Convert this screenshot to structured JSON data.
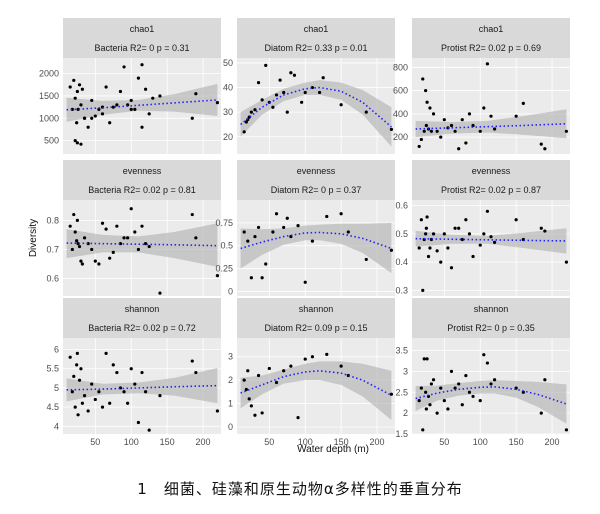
{
  "figure": {
    "caption": "1　细菌、硅藻和原生动物α多样性的垂直分布",
    "xlabel": "Water depth (m)",
    "ylabel": "Diversity"
  },
  "colors": {
    "panel_bg": "#ebebeb",
    "strip_bg": "#d9d9d9",
    "grid": "#ffffff",
    "point": "#000000",
    "fit_line": "#2020ff",
    "ribbon": "#b3b3b3"
  },
  "chart_data": [
    {
      "type": "scatter",
      "row": 0,
      "col": 0,
      "metric": "chao1",
      "title": "Bacteria R2= 0 p = 0.31",
      "xlim": [
        5,
        225
      ],
      "ylim": [
        200,
        2350
      ],
      "yticks": [
        500,
        1000,
        1500,
        2000
      ],
      "x": [
        15,
        18,
        20,
        22,
        24,
        25,
        26,
        28,
        30,
        32,
        35,
        40,
        45,
        50,
        55,
        60,
        65,
        70,
        75,
        80,
        85,
        90,
        95,
        100,
        105,
        110,
        115,
        120,
        125,
        130,
        140,
        185,
        190,
        220,
        22,
        30,
        25,
        100,
        115,
        60,
        45,
        35
      ],
      "y": [
        1700,
        1200,
        1850,
        1450,
        900,
        1600,
        1200,
        1750,
        1300,
        1650,
        1000,
        800,
        1400,
        1050,
        1200,
        1250,
        1700,
        900,
        1250,
        1300,
        1600,
        2150,
        1300,
        1400,
        1200,
        1900,
        2200,
        1650,
        1100,
        1450,
        1500,
        1000,
        1550,
        1350,
        500,
        420,
        450,
        1200,
        800,
        1100,
        1000,
        1000
      ],
      "fit": [
        [
          10,
          1190
        ],
        [
          60,
          1235
        ],
        [
          110,
          1290
        ],
        [
          160,
          1345
        ],
        [
          220,
          1410
        ]
      ],
      "ci": [
        [
          10,
          920,
          1460
        ],
        [
          60,
          1080,
          1390
        ],
        [
          110,
          1170,
          1410
        ],
        [
          160,
          1150,
          1540
        ],
        [
          220,
          1050,
          1770
        ]
      ]
    },
    {
      "type": "scatter",
      "row": 0,
      "col": 1,
      "metric": "chao1",
      "title": "Diatom R2= 0.33 p = 0.01",
      "xlim": [
        5,
        225
      ],
      "ylim": [
        13,
        52
      ],
      "yticks": [
        20,
        30,
        40,
        50
      ],
      "x": [
        15,
        18,
        20,
        22,
        25,
        30,
        35,
        40,
        45,
        50,
        55,
        60,
        65,
        70,
        75,
        80,
        85,
        95,
        100,
        110,
        120,
        125,
        150,
        185,
        220
      ],
      "y": [
        22,
        26,
        27,
        28,
        30,
        31,
        42,
        35,
        49,
        34,
        32,
        37,
        43,
        38,
        30,
        46,
        45,
        34,
        38,
        40,
        38,
        44,
        33,
        30,
        23
      ],
      "fit": [
        [
          10,
          25
        ],
        [
          40,
          32
        ],
        [
          70,
          37
        ],
        [
          100,
          39.5
        ],
        [
          120,
          40
        ],
        [
          150,
          38.5
        ],
        [
          180,
          34
        ],
        [
          220,
          24
        ]
      ],
      "ci": [
        [
          10,
          20,
          30
        ],
        [
          40,
          29,
          35
        ],
        [
          70,
          34.5,
          39.5
        ],
        [
          100,
          37,
          42
        ],
        [
          120,
          37,
          43
        ],
        [
          150,
          35,
          42
        ],
        [
          180,
          29,
          39
        ],
        [
          220,
          16,
          32
        ]
      ]
    },
    {
      "type": "scatter",
      "row": 0,
      "col": 2,
      "metric": "chao1",
      "title": "Protist R2= 0.02 p = 0.69",
      "xlim": [
        5,
        225
      ],
      "ylim": [
        55,
        880
      ],
      "yticks": [
        200,
        400,
        600,
        800
      ],
      "x": [
        15,
        18,
        20,
        22,
        24,
        25,
        26,
        28,
        30,
        32,
        35,
        40,
        45,
        50,
        55,
        60,
        65,
        70,
        75,
        80,
        85,
        90,
        100,
        105,
        110,
        115,
        120,
        150,
        160,
        185,
        190,
        220
      ],
      "y": [
        120,
        180,
        700,
        250,
        600,
        300,
        500,
        270,
        450,
        250,
        400,
        250,
        200,
        350,
        280,
        300,
        250,
        100,
        350,
        150,
        400,
        300,
        250,
        450,
        830,
        380,
        270,
        380,
        490,
        140,
        100,
        250
      ],
      "fit": [
        [
          10,
          270
        ],
        [
          60,
          280
        ],
        [
          110,
          290
        ],
        [
          160,
          300
        ],
        [
          220,
          315
        ]
      ],
      "ci": [
        [
          10,
          200,
          340
        ],
        [
          60,
          230,
          330
        ],
        [
          110,
          240,
          340
        ],
        [
          160,
          220,
          380
        ],
        [
          220,
          190,
          440
        ]
      ]
    },
    {
      "type": "scatter",
      "row": 1,
      "col": 0,
      "metric": "evenness",
      "title": "Bacteria R2= 0.02 p = 0.81",
      "xlim": [
        5,
        225
      ],
      "ylim": [
        0.54,
        0.87
      ],
      "yticks": [
        0.6,
        0.7,
        0.8
      ],
      "x": [
        15,
        18,
        20,
        22,
        24,
        25,
        26,
        28,
        30,
        32,
        35,
        40,
        45,
        50,
        55,
        60,
        65,
        70,
        75,
        80,
        85,
        90,
        95,
        100,
        105,
        110,
        115,
        120,
        125,
        140,
        185,
        190,
        220
      ],
      "y": [
        0.78,
        0.7,
        0.82,
        0.76,
        0.73,
        0.8,
        0.72,
        0.71,
        0.66,
        0.65,
        0.74,
        0.72,
        0.7,
        0.66,
        0.65,
        0.79,
        0.77,
        0.67,
        0.69,
        0.78,
        0.72,
        0.74,
        0.74,
        0.84,
        0.76,
        0.7,
        0.78,
        0.72,
        0.71,
        0.55,
        0.82,
        0.74,
        0.61
      ],
      "fit": [
        [
          10,
          0.722
        ],
        [
          60,
          0.72
        ],
        [
          110,
          0.718
        ],
        [
          160,
          0.716
        ],
        [
          220,
          0.713
        ]
      ],
      "ci": [
        [
          10,
          0.67,
          0.77
        ],
        [
          60,
          0.69,
          0.75
        ],
        [
          110,
          0.69,
          0.745
        ],
        [
          160,
          0.67,
          0.76
        ],
        [
          220,
          0.64,
          0.79
        ]
      ]
    },
    {
      "type": "scatter",
      "row": 1,
      "col": 1,
      "metric": "evenness",
      "title": "Diatom R2= 0 p = 0.37",
      "xlim": [
        5,
        225
      ],
      "ylim": [
        -0.05,
        1.0
      ],
      "yticks": [
        0.0,
        0.25,
        0.5,
        0.75
      ],
      "x": [
        15,
        20,
        25,
        30,
        35,
        40,
        45,
        55,
        60,
        70,
        75,
        80,
        90,
        100,
        110,
        130,
        150,
        160,
        185,
        220
      ],
      "y": [
        0.65,
        0.55,
        0.15,
        0.6,
        0.7,
        0.15,
        0.3,
        0.65,
        0.85,
        0.7,
        0.8,
        0.6,
        0.72,
        0.1,
        0.55,
        0.82,
        0.85,
        0.65,
        0.35,
        0.45
      ],
      "fit": [
        [
          10,
          0.47
        ],
        [
          40,
          0.54
        ],
        [
          70,
          0.6
        ],
        [
          100,
          0.64
        ],
        [
          120,
          0.645
        ],
        [
          150,
          0.63
        ],
        [
          180,
          0.58
        ],
        [
          220,
          0.47
        ]
      ],
      "ci": [
        [
          10,
          0.25,
          0.69
        ],
        [
          40,
          0.4,
          0.68
        ],
        [
          70,
          0.51,
          0.69
        ],
        [
          100,
          0.56,
          0.72
        ],
        [
          120,
          0.56,
          0.73
        ],
        [
          150,
          0.52,
          0.74
        ],
        [
          180,
          0.42,
          0.74
        ],
        [
          220,
          0.2,
          0.75
        ]
      ]
    },
    {
      "type": "scatter",
      "row": 1,
      "col": 2,
      "metric": "evenness",
      "title": "Protist R2= 0.02 p = 0.87",
      "xlim": [
        5,
        225
      ],
      "ylim": [
        0.28,
        0.62
      ],
      "yticks": [
        0.3,
        0.4,
        0.5,
        0.6
      ],
      "x": [
        15,
        18,
        20,
        22,
        24,
        25,
        26,
        28,
        30,
        32,
        35,
        40,
        45,
        50,
        55,
        60,
        65,
        70,
        75,
        80,
        85,
        90,
        100,
        105,
        110,
        115,
        120,
        150,
        160,
        185,
        190,
        220
      ],
      "y": [
        0.45,
        0.55,
        0.3,
        0.48,
        0.5,
        0.52,
        0.56,
        0.42,
        0.45,
        0.48,
        0.5,
        0.44,
        0.4,
        0.5,
        0.45,
        0.38,
        0.52,
        0.52,
        0.48,
        0.55,
        0.5,
        0.42,
        0.46,
        0.5,
        0.58,
        0.49,
        0.47,
        0.55,
        0.48,
        0.52,
        0.51,
        0.4
      ],
      "fit": [
        [
          10,
          0.483
        ],
        [
          60,
          0.481
        ],
        [
          110,
          0.479
        ],
        [
          160,
          0.477
        ],
        [
          220,
          0.475
        ]
      ],
      "ci": [
        [
          10,
          0.455,
          0.511
        ],
        [
          60,
          0.465,
          0.497
        ],
        [
          110,
          0.465,
          0.493
        ],
        [
          160,
          0.45,
          0.504
        ],
        [
          220,
          0.43,
          0.52
        ]
      ]
    },
    {
      "type": "scatter",
      "row": 2,
      "col": 0,
      "metric": "shannon",
      "title": "Bacteria R2= 0.02 p = 0.72",
      "xlim": [
        5,
        225
      ],
      "ylim": [
        3.8,
        6.3
      ],
      "yticks": [
        4.0,
        4.5,
        5.0,
        5.5,
        6.0
      ],
      "x": [
        15,
        18,
        20,
        22,
        24,
        25,
        26,
        28,
        30,
        32,
        35,
        40,
        45,
        50,
        55,
        60,
        65,
        70,
        75,
        80,
        85,
        90,
        95,
        100,
        105,
        110,
        115,
        120,
        125,
        140,
        185,
        190,
        220
      ],
      "y": [
        5.8,
        4.9,
        5.3,
        4.5,
        5.6,
        5.9,
        4.3,
        5.2,
        5.5,
        4.6,
        4.8,
        4.4,
        5.1,
        4.7,
        4.9,
        4.5,
        5.9,
        4.6,
        5.6,
        5.4,
        5.0,
        4.9,
        4.6,
        5.5,
        5.1,
        4.1,
        5.4,
        4.9,
        3.9,
        4.8,
        5.7,
        5.4,
        4.4
      ],
      "fit": [
        [
          10,
          4.95
        ],
        [
          60,
          4.97
        ],
        [
          110,
          5.0
        ],
        [
          160,
          5.03
        ],
        [
          220,
          5.06
        ]
      ],
      "ci": [
        [
          10,
          4.65,
          5.25
        ],
        [
          60,
          4.83,
          5.11
        ],
        [
          110,
          4.86,
          5.14
        ],
        [
          160,
          4.8,
          5.26
        ],
        [
          220,
          4.6,
          5.52
        ]
      ]
    },
    {
      "type": "scatter",
      "row": 2,
      "col": 1,
      "metric": "shannon",
      "title": "Diatom R2= 0.09 p = 0.15",
      "xlim": [
        5,
        225
      ],
      "ylim": [
        -0.3,
        3.8
      ],
      "yticks": [
        0,
        1,
        2,
        3
      ],
      "x": [
        15,
        18,
        20,
        22,
        25,
        30,
        35,
        40,
        50,
        60,
        70,
        80,
        90,
        100,
        110,
        130,
        150,
        160,
        220
      ],
      "y": [
        2.0,
        1.6,
        2.4,
        1.2,
        0.9,
        0.5,
        2.2,
        0.6,
        2.5,
        1.9,
        2.4,
        2.6,
        0.4,
        2.9,
        3.0,
        3.1,
        2.6,
        2.2,
        1.4
      ],
      "fit": [
        [
          10,
          1.45
        ],
        [
          40,
          1.8
        ],
        [
          70,
          2.15
        ],
        [
          100,
          2.35
        ],
        [
          120,
          2.4
        ],
        [
          150,
          2.3
        ],
        [
          180,
          2.0
        ],
        [
          220,
          1.35
        ]
      ],
      "ci": [
        [
          10,
          0.8,
          2.1
        ],
        [
          40,
          1.4,
          2.2
        ],
        [
          70,
          1.85,
          2.45
        ],
        [
          100,
          2.0,
          2.7
        ],
        [
          120,
          2.0,
          2.8
        ],
        [
          150,
          1.8,
          2.8
        ],
        [
          180,
          1.3,
          2.7
        ],
        [
          220,
          0.3,
          2.4
        ]
      ]
    },
    {
      "type": "scatter",
      "row": 2,
      "col": 2,
      "metric": "shannon",
      "title": "Protist R2= 0 p = 0.35",
      "xlim": [
        5,
        225
      ],
      "ylim": [
        1.5,
        3.8
      ],
      "yticks": [
        1.5,
        2.0,
        2.5,
        3.0,
        3.5
      ],
      "x": [
        15,
        18,
        20,
        22,
        24,
        25,
        26,
        28,
        30,
        32,
        35,
        40,
        45,
        50,
        55,
        60,
        65,
        70,
        75,
        80,
        85,
        90,
        100,
        105,
        110,
        115,
        120,
        150,
        160,
        185,
        190,
        220
      ],
      "y": [
        2.3,
        2.6,
        1.6,
        3.3,
        2.5,
        2.1,
        3.3,
        2.4,
        2.2,
        2.7,
        2.8,
        2.0,
        2.6,
        2.3,
        2.1,
        3.0,
        2.6,
        2.7,
        2.2,
        2.9,
        2.5,
        2.4,
        2.3,
        3.4,
        3.2,
        2.7,
        2.8,
        2.6,
        2.5,
        2.0,
        2.8,
        1.6
      ],
      "fit": [
        [
          10,
          2.35
        ],
        [
          40,
          2.48
        ],
        [
          70,
          2.57
        ],
        [
          100,
          2.62
        ],
        [
          120,
          2.63
        ],
        [
          150,
          2.57
        ],
        [
          180,
          2.45
        ],
        [
          220,
          2.22
        ]
      ],
      "ci": [
        [
          10,
          2.05,
          2.65
        ],
        [
          40,
          2.3,
          2.66
        ],
        [
          70,
          2.42,
          2.72
        ],
        [
          100,
          2.47,
          2.77
        ],
        [
          120,
          2.47,
          2.79
        ],
        [
          150,
          2.37,
          2.77
        ],
        [
          180,
          2.15,
          2.75
        ],
        [
          220,
          1.75,
          2.69
        ]
      ]
    }
  ],
  "xaxis": {
    "ticks": [
      50,
      100,
      150,
      200
    ]
  }
}
